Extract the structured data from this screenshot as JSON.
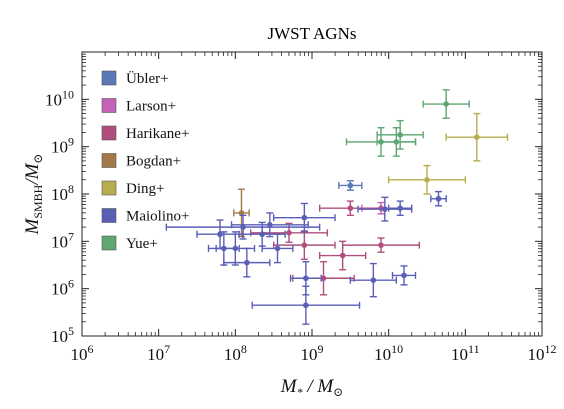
{
  "chart_data": {
    "type": "scatter",
    "title": "JWST AGNs",
    "xlabel": "M*/M⊙",
    "ylabel": "MSMBH/M⊙",
    "xscale": "log",
    "yscale": "log",
    "xlim": [
      1000000,
      1000000000000
    ],
    "ylim": [
      100000,
      100000000000
    ],
    "x_ticks": [
      "10^6",
      "10^7",
      "10^8",
      "10^9",
      "10^10",
      "10^11",
      "10^12"
    ],
    "y_ticks": [
      "10^5",
      "10^6",
      "10^7",
      "10^8",
      "10^9",
      "10^10"
    ],
    "legend_position": "top-left",
    "grid": false,
    "series": [
      {
        "name": "Übler+",
        "color": "#5b79b4",
        "points": [
          {
            "logx": 9.5,
            "logy": 8.18,
            "xerr": 0.15,
            "yerr": 0.1
          }
        ]
      },
      {
        "name": "Larson+",
        "color": "#c263b8",
        "points": [
          {
            "logx": 9.9,
            "logy": 7.7,
            "xerr": 0.25,
            "yerr": 0.12
          }
        ]
      },
      {
        "name": "Harikane+",
        "color": "#b04f7e",
        "points": [
          {
            "logx": 9.5,
            "logy": 7.7,
            "xerr": 0.4,
            "yerr": 0.15
          },
          {
            "logx": 8.7,
            "logy": 7.18,
            "xerr": 0.5,
            "yerr": 0.2
          },
          {
            "logx": 8.9,
            "logy": 6.92,
            "xerr": 0.4,
            "yerr": 0.3
          },
          {
            "logx": 9.9,
            "logy": 6.92,
            "xerr": 0.5,
            "yerr": 0.15
          },
          {
            "logx": 9.4,
            "logy": 6.7,
            "xerr": 0.3,
            "yerr": 0.3
          },
          {
            "logx": 9.15,
            "logy": 6.22,
            "xerr": 0.4,
            "yerr": 0.35
          }
        ]
      },
      {
        "name": "Bogdan+",
        "color": "#a4794a",
        "points": [
          {
            "logx": 8.08,
            "logy": 7.6,
            "xerr": 0.1,
            "yerr": 0.5
          }
        ]
      },
      {
        "name": "Ding+",
        "color": "#b7ad4d",
        "points": [
          {
            "logx": 10.5,
            "logy": 8.3,
            "xerr": 0.5,
            "yerr": 0.3
          },
          {
            "logx": 11.15,
            "logy": 9.2,
            "xerr": 0.4,
            "yerr": 0.5
          }
        ]
      },
      {
        "name": "Maiolino+",
        "color": "#5a5fb6",
        "points": [
          {
            "logx": 8.9,
            "logy": 7.5,
            "xerr": 0.4,
            "yerr": 0.3
          },
          {
            "logx": 8.45,
            "logy": 7.35,
            "xerr": 0.5,
            "yerr": 0.25
          },
          {
            "logx": 8.1,
            "logy": 7.3,
            "xerr": 1.0,
            "yerr": 0.25
          },
          {
            "logx": 8.35,
            "logy": 7.15,
            "xerr": 0.3,
            "yerr": 0.25
          },
          {
            "logx": 7.8,
            "logy": 7.15,
            "xerr": 0.3,
            "yerr": 0.3
          },
          {
            "logx": 8.0,
            "logy": 6.85,
            "xerr": 0.25,
            "yerr": 0.35
          },
          {
            "logx": 7.85,
            "logy": 6.85,
            "xerr": 0.2,
            "yerr": 0.35
          },
          {
            "logx": 8.55,
            "logy": 6.85,
            "xerr": 0.2,
            "yerr": 0.3
          },
          {
            "logx": 8.15,
            "logy": 6.55,
            "xerr": 0.3,
            "yerr": 0.3
          },
          {
            "logx": 8.92,
            "logy": 6.22,
            "xerr": 0.2,
            "yerr": 0.35
          },
          {
            "logx": 9.8,
            "logy": 6.18,
            "xerr": 0.3,
            "yerr": 0.35
          },
          {
            "logx": 10.2,
            "logy": 6.28,
            "xerr": 0.15,
            "yerr": 0.2
          },
          {
            "logx": 8.92,
            "logy": 5.65,
            "xerr": 0.7,
            "yerr": 0.4
          },
          {
            "logx": 9.95,
            "logy": 7.68,
            "xerr": 0.35,
            "yerr": 0.25
          },
          {
            "logx": 10.65,
            "logy": 7.9,
            "xerr": 0.1,
            "yerr": 0.15
          },
          {
            "logx": 10.15,
            "logy": 7.7,
            "xerr": 0.15,
            "yerr": 0.15
          }
        ]
      },
      {
        "name": "Yue+",
        "color": "#5ea672",
        "points": [
          {
            "logx": 10.75,
            "logy": 9.9,
            "xerr": 0.3,
            "yerr": 0.3
          },
          {
            "logx": 10.15,
            "logy": 9.25,
            "xerr": 0.3,
            "yerr": 0.3
          },
          {
            "logx": 9.9,
            "logy": 9.1,
            "xerr": 0.45,
            "yerr": 0.3
          },
          {
            "logx": 10.1,
            "logy": 9.1,
            "xerr": 0.25,
            "yerr": 0.3
          }
        ]
      }
    ]
  }
}
